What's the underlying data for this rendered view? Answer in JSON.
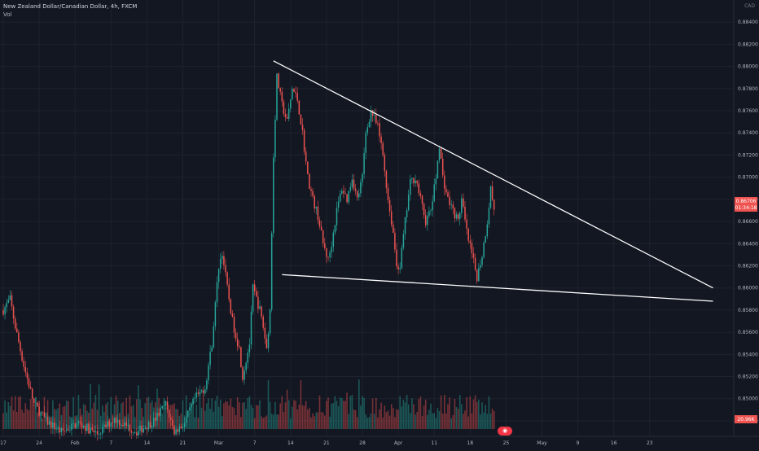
{
  "legend": {
    "symbol": "New Zealand Dollar/Canadian Dollar, 4h, FXCM",
    "volume": "Vol"
  },
  "price_scale": {
    "currency": "CAD",
    "last_price_label": "0.86706",
    "countdown_label": "01:34:18",
    "volume_label": "20.96K"
  },
  "colors": {
    "background": "#131722",
    "grid": "#1e222d",
    "up": "#26a69a",
    "down": "#ef5350",
    "trendline": "#ffffff",
    "label_bg": "#f23645"
  },
  "chart_data": {
    "type": "candlestick",
    "title": "New Zealand Dollar/Canadian Dollar, 4h, FXCM",
    "y_ticks": [
      0.848,
      0.85,
      0.852,
      0.854,
      0.856,
      0.858,
      0.86,
      0.862,
      0.864,
      0.866,
      0.868,
      0.87,
      0.872,
      0.874,
      0.876,
      0.878,
      0.88,
      0.882,
      0.884
    ],
    "ylim": [
      0.8466,
      0.886
    ],
    "x_ticks": [
      "17",
      "24",
      "Feb",
      "7",
      "14",
      "21",
      "Mar",
      "7",
      "14",
      "21",
      "28",
      "Apr",
      "11",
      "18",
      "25",
      "May",
      "9",
      "16",
      "23"
    ],
    "last_price": 0.86706,
    "grid": true,
    "series": [
      {
        "name": "Price",
        "anchors": [
          [
            0,
            0.858
          ],
          [
            4,
            0.859
          ],
          [
            7,
            0.8565
          ],
          [
            12,
            0.853
          ],
          [
            18,
            0.8495
          ],
          [
            25,
            0.848
          ],
          [
            34,
            0.847
          ],
          [
            44,
            0.8478
          ],
          [
            55,
            0.8468
          ],
          [
            65,
            0.8482
          ],
          [
            78,
            0.847
          ],
          [
            88,
            0.848
          ],
          [
            95,
            0.8495
          ],
          [
            100,
            0.847
          ],
          [
            106,
            0.8478
          ],
          [
            112,
            0.85
          ],
          [
            118,
            0.851
          ],
          [
            122,
            0.855
          ],
          [
            126,
            0.862
          ],
          [
            128,
            0.8632
          ],
          [
            131,
            0.86
          ],
          [
            134,
            0.857
          ],
          [
            138,
            0.8545
          ],
          [
            140,
            0.852
          ],
          [
            144,
            0.855
          ],
          [
            146,
            0.86
          ],
          [
            150,
            0.858
          ],
          [
            152,
            0.8565
          ],
          [
            154,
            0.8545
          ],
          [
            156,
            0.858
          ],
          [
            158,
            0.872
          ],
          [
            160,
            0.879
          ],
          [
            163,
            0.8765
          ],
          [
            166,
            0.875
          ],
          [
            169,
            0.878
          ],
          [
            172,
            0.877
          ],
          [
            175,
            0.874
          ],
          [
            178,
            0.87
          ],
          [
            181,
            0.868
          ],
          [
            184,
            0.8665
          ],
          [
            187,
            0.864
          ],
          [
            190,
            0.8625
          ],
          [
            192,
            0.864
          ],
          [
            195,
            0.867
          ],
          [
            198,
            0.869
          ],
          [
            201,
            0.868
          ],
          [
            204,
            0.87
          ],
          [
            207,
            0.868
          ],
          [
            210,
            0.87
          ],
          [
            212,
            0.874
          ],
          [
            215,
            0.876
          ],
          [
            219,
            0.8745
          ],
          [
            222,
            0.872
          ],
          [
            225,
            0.868
          ],
          [
            228,
            0.865
          ],
          [
            230,
            0.862
          ],
          [
            232,
            0.862
          ],
          [
            235,
            0.866
          ],
          [
            238,
            0.8695
          ],
          [
            241,
            0.87
          ],
          [
            244,
            0.868
          ],
          [
            247,
            0.866
          ],
          [
            250,
            0.867
          ],
          [
            253,
            0.87
          ],
          [
            255,
            0.873
          ],
          [
            257,
            0.87
          ],
          [
            260,
            0.868
          ],
          [
            263,
            0.867
          ],
          [
            266,
            0.866
          ],
          [
            268,
            0.868
          ],
          [
            271,
            0.865
          ],
          [
            274,
            0.863
          ],
          [
            277,
            0.861
          ],
          [
            280,
            0.863
          ],
          [
            283,
            0.866
          ],
          [
            285,
            0.869
          ],
          [
            287,
            0.8671
          ]
        ],
        "volume_range": [
          0.2,
          1.0
        ]
      }
    ],
    "trendlines": [
      {
        "name": "upper",
        "start": [
          158,
          0.8805
        ],
        "end": [
          415,
          0.86
        ]
      },
      {
        "name": "lower",
        "start": [
          163,
          0.8612
        ],
        "end": [
          415,
          0.8588
        ]
      }
    ]
  }
}
